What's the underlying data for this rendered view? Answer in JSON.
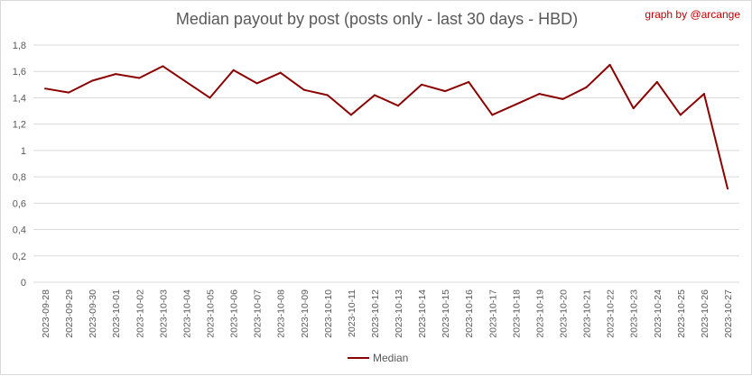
{
  "chart": {
    "title": "Median payout by post (posts only - last 30 days - HBD)",
    "credit": "graph by @arcange",
    "legend": "Median",
    "colors": {
      "line": "#8b0000",
      "grid": "#d9d9d9",
      "axis_text": "#595959",
      "credit": "#c00000"
    }
  },
  "chart_data": {
    "type": "line",
    "title": "Median payout by post (posts only - last 30 days - HBD)",
    "xlabel": "",
    "ylabel": "",
    "ylim": [
      0,
      1.8
    ],
    "yticks": [
      "0",
      "0,2",
      "0,4",
      "0,6",
      "0,8",
      "1",
      "1,2",
      "1,4",
      "1,6",
      "1,8"
    ],
    "grid": true,
    "legend_position": "bottom",
    "categories": [
      "2023-09-28",
      "2023-09-29",
      "2023-09-30",
      "2023-10-01",
      "2023-10-02",
      "2023-10-03",
      "2023-10-04",
      "2023-10-05",
      "2023-10-06",
      "2023-10-07",
      "2023-10-08",
      "2023-10-09",
      "2023-10-10",
      "2023-10-11",
      "2023-10-12",
      "2023-10-13",
      "2023-10-14",
      "2023-10-15",
      "2023-10-16",
      "2023-10-17",
      "2023-10-18",
      "2023-10-19",
      "2023-10-20",
      "2023-10-21",
      "2023-10-22",
      "2023-10-23",
      "2023-10-24",
      "2023-10-25",
      "2023-10-26",
      "2023-10-27"
    ],
    "series": [
      {
        "name": "Median",
        "color": "#8b0000",
        "values": [
          1.47,
          1.44,
          1.53,
          1.58,
          1.55,
          1.64,
          1.52,
          1.4,
          1.61,
          1.51,
          1.59,
          1.46,
          1.42,
          1.27,
          1.42,
          1.34,
          1.5,
          1.45,
          1.52,
          1.27,
          1.35,
          1.43,
          1.39,
          1.48,
          1.65,
          1.32,
          1.52,
          1.27,
          1.43,
          0.71
        ]
      }
    ]
  }
}
